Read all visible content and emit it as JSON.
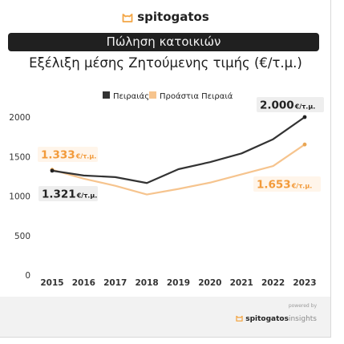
{
  "brand": {
    "name": "spitogatos"
  },
  "banner": "Πώληση κατοικιών",
  "subtitle": "Εξέλιξη μέσης Ζητούμενης τιμής (€/τ.μ.)",
  "footer": {
    "powered_by": "powered by",
    "brand": "spitogatos",
    "suffix": "insights"
  },
  "colors": {
    "piraeus": "#333333",
    "suburbs": "#f6c48e",
    "accent_label_orange": "#f29a3a"
  },
  "chart_data": {
    "type": "line",
    "x": [
      2015,
      2016,
      2017,
      2018,
      2019,
      2020,
      2021,
      2022,
      2023
    ],
    "ylim": [
      0,
      2100
    ],
    "yticks": [
      0,
      500,
      1000,
      1500,
      2000
    ],
    "grid": false,
    "legend_position": "top",
    "series": [
      {
        "name": "Πειραιάς",
        "color": "#333333",
        "values": [
          1321,
          1260,
          1240,
          1165,
          1340,
          1430,
          1540,
          1720,
          2000
        ]
      },
      {
        "name": "Προάστια Πειραιά",
        "color": "#f6c48e",
        "values": [
          1333,
          1220,
          1130,
          1020,
          1090,
          1170,
          1275,
          1380,
          1653
        ]
      }
    ],
    "annotations": [
      {
        "series": "Πειραιάς",
        "x": 2015,
        "text": "1.321",
        "unit": "€/τ.μ."
      },
      {
        "series": "Πειραιάς",
        "x": 2023,
        "text": "2.000",
        "unit": "€/τ.μ."
      },
      {
        "series": "Προάστια Πειραιά",
        "x": 2015,
        "text": "1.333",
        "unit": "€/τ.μ."
      },
      {
        "series": "Προάστια Πειραιά",
        "x": 2023,
        "text": "1.653",
        "unit": "€/τ.μ."
      }
    ]
  }
}
